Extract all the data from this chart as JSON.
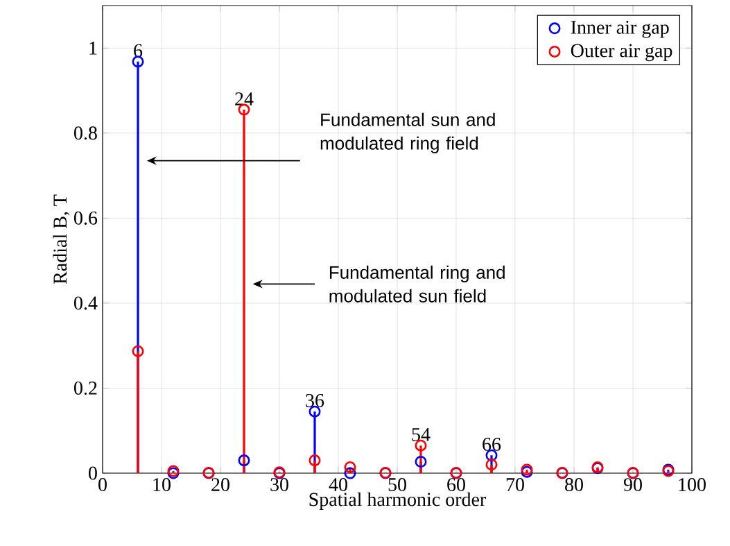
{
  "chart_data": {
    "type": "lollipop",
    "xlabel": "Spatial harmonic order",
    "ylabel": "Radial B, T",
    "x": [
      6,
      12,
      18,
      24,
      30,
      36,
      42,
      48,
      54,
      60,
      66,
      72,
      78,
      84,
      90,
      96
    ],
    "series": [
      {
        "name": "Inner air gap",
        "color": "#0000ff",
        "values": [
          0.968,
          0.0,
          0.0,
          0.03,
          0.0,
          0.145,
          0.0,
          0.0,
          0.027,
          0.0,
          0.042,
          0.003,
          0.0,
          0.012,
          0.0,
          0.008
        ]
      },
      {
        "name": "Outer air gap",
        "color": "#ff0000",
        "values": [
          0.287,
          0.005,
          0.001,
          0.855,
          0.002,
          0.03,
          0.014,
          0.001,
          0.065,
          0.001,
          0.02,
          0.008,
          0.001,
          0.014,
          0.001,
          0.005
        ]
      }
    ],
    "xlim": [
      0,
      100
    ],
    "xticks": [
      0,
      10,
      20,
      30,
      40,
      50,
      60,
      70,
      80,
      90,
      100
    ],
    "ylim": [
      0,
      1.1
    ],
    "yticks": [
      0,
      0.2,
      0.4,
      0.6,
      0.8,
      1
    ],
    "grid": true,
    "legend": "top right",
    "marker": "circle",
    "annotations": [
      {
        "text": "6",
        "x": 6,
        "y": 0.968
      },
      {
        "text": "24",
        "x": 24,
        "y": 0.855
      },
      {
        "text": "36",
        "x": 36,
        "y": 0.145
      },
      {
        "text": "54",
        "x": 54,
        "y": 0.065
      },
      {
        "text": "66",
        "x": 66,
        "y": 0.042
      },
      "Fundamental sun and modulated ring field",
      "Fundamental ring and modulated sun field"
    ]
  }
}
